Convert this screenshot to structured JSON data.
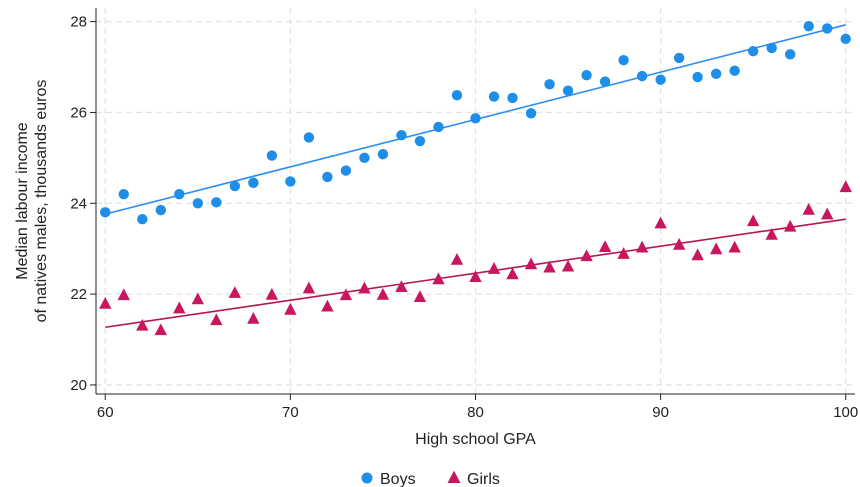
{
  "chart_data": {
    "type": "scatter",
    "xlabel": "High school GPA",
    "ylabel_lines": [
      "Median labour income",
      "of natives males, thousands euros"
    ],
    "xlim": [
      59.5,
      100.5
    ],
    "ylim": [
      19.8,
      28.3
    ],
    "x_ticks": [
      60,
      70,
      80,
      90,
      100
    ],
    "y_ticks": [
      20,
      22,
      24,
      26,
      28
    ],
    "grid": true,
    "legend_position": "bottom",
    "series": [
      {
        "name": "Boys",
        "marker": "circle",
        "color": "#1f8ee8",
        "x": [
          60,
          61,
          62,
          63,
          64,
          65,
          66,
          67,
          68,
          69,
          70,
          71,
          72,
          73,
          74,
          75,
          76,
          77,
          78,
          79,
          80,
          81,
          82,
          83,
          84,
          85,
          86,
          87,
          88,
          89,
          90,
          91,
          92,
          93,
          94,
          95,
          96,
          97,
          98,
          99,
          100
        ],
        "y": [
          23.8,
          24.2,
          23.65,
          23.85,
          24.2,
          24.0,
          24.02,
          24.38,
          24.45,
          25.05,
          24.48,
          25.45,
          24.58,
          24.72,
          25.0,
          25.08,
          25.5,
          25.37,
          25.68,
          26.38,
          25.87,
          26.35,
          26.32,
          25.98,
          26.62,
          26.48,
          26.82,
          26.68,
          27.15,
          26.8,
          26.72,
          27.2,
          26.78,
          26.85,
          26.92,
          27.35,
          27.42,
          27.28,
          27.9,
          27.85,
          27.62
        ],
        "fit": {
          "x": [
            60,
            100
          ],
          "y": [
            23.76,
            27.93
          ],
          "color": "#2d8ef0"
        }
      },
      {
        "name": "Girls",
        "marker": "triangle",
        "color": "#c8175e",
        "x": [
          60,
          61,
          62,
          63,
          64,
          65,
          66,
          67,
          68,
          69,
          70,
          71,
          72,
          73,
          74,
          75,
          76,
          77,
          78,
          79,
          80,
          81,
          82,
          83,
          84,
          85,
          86,
          87,
          88,
          89,
          90,
          91,
          92,
          93,
          94,
          95,
          96,
          97,
          98,
          99,
          100
        ],
        "y": [
          21.78,
          21.97,
          21.3,
          21.2,
          21.68,
          21.88,
          21.42,
          22.02,
          21.45,
          21.98,
          21.65,
          22.12,
          21.72,
          21.97,
          22.12,
          21.98,
          22.15,
          21.93,
          22.32,
          22.75,
          22.37,
          22.55,
          22.43,
          22.65,
          22.58,
          22.6,
          22.83,
          23.03,
          22.88,
          23.02,
          23.55,
          23.08,
          22.85,
          22.98,
          23.02,
          23.6,
          23.3,
          23.48,
          23.85,
          23.75,
          24.35
        ],
        "fit": {
          "x": [
            60,
            100
          ],
          "y": [
            21.27,
            23.65
          ],
          "color": "#b5164f"
        }
      }
    ]
  }
}
